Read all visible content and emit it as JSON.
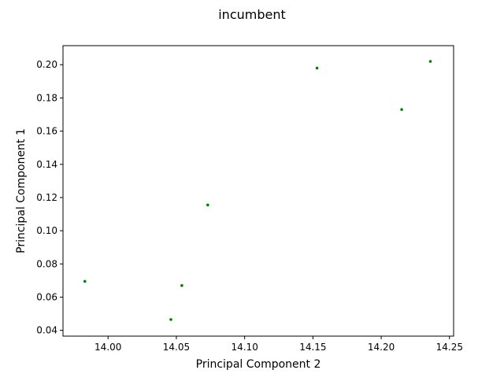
{
  "chart_data": {
    "type": "scatter",
    "title": "incumbent",
    "xlabel": "Principal Component 2",
    "ylabel": "Principal Component 1",
    "xlim": [
      13.967,
      14.253
    ],
    "ylim": [
      0.0365,
      0.2115
    ],
    "xticks": [
      14.0,
      14.05,
      14.1,
      14.15,
      14.2,
      14.25
    ],
    "xtick_labels": [
      "14.00",
      "14.05",
      "14.10",
      "14.15",
      "14.20",
      "14.25"
    ],
    "yticks": [
      0.04,
      0.06,
      0.08,
      0.1,
      0.12,
      0.14,
      0.16,
      0.18,
      0.2
    ],
    "ytick_labels": [
      "0.04",
      "0.06",
      "0.08",
      "0.10",
      "0.12",
      "0.14",
      "0.16",
      "0.18",
      "0.20"
    ],
    "grid": false,
    "point_color": "#008000",
    "series": [
      {
        "x": [
          13.983,
          14.046,
          14.054,
          14.073,
          14.153,
          14.215,
          14.236
        ],
        "y": [
          0.0695,
          0.0465,
          0.067,
          0.1155,
          0.198,
          0.173,
          0.202
        ]
      }
    ]
  }
}
